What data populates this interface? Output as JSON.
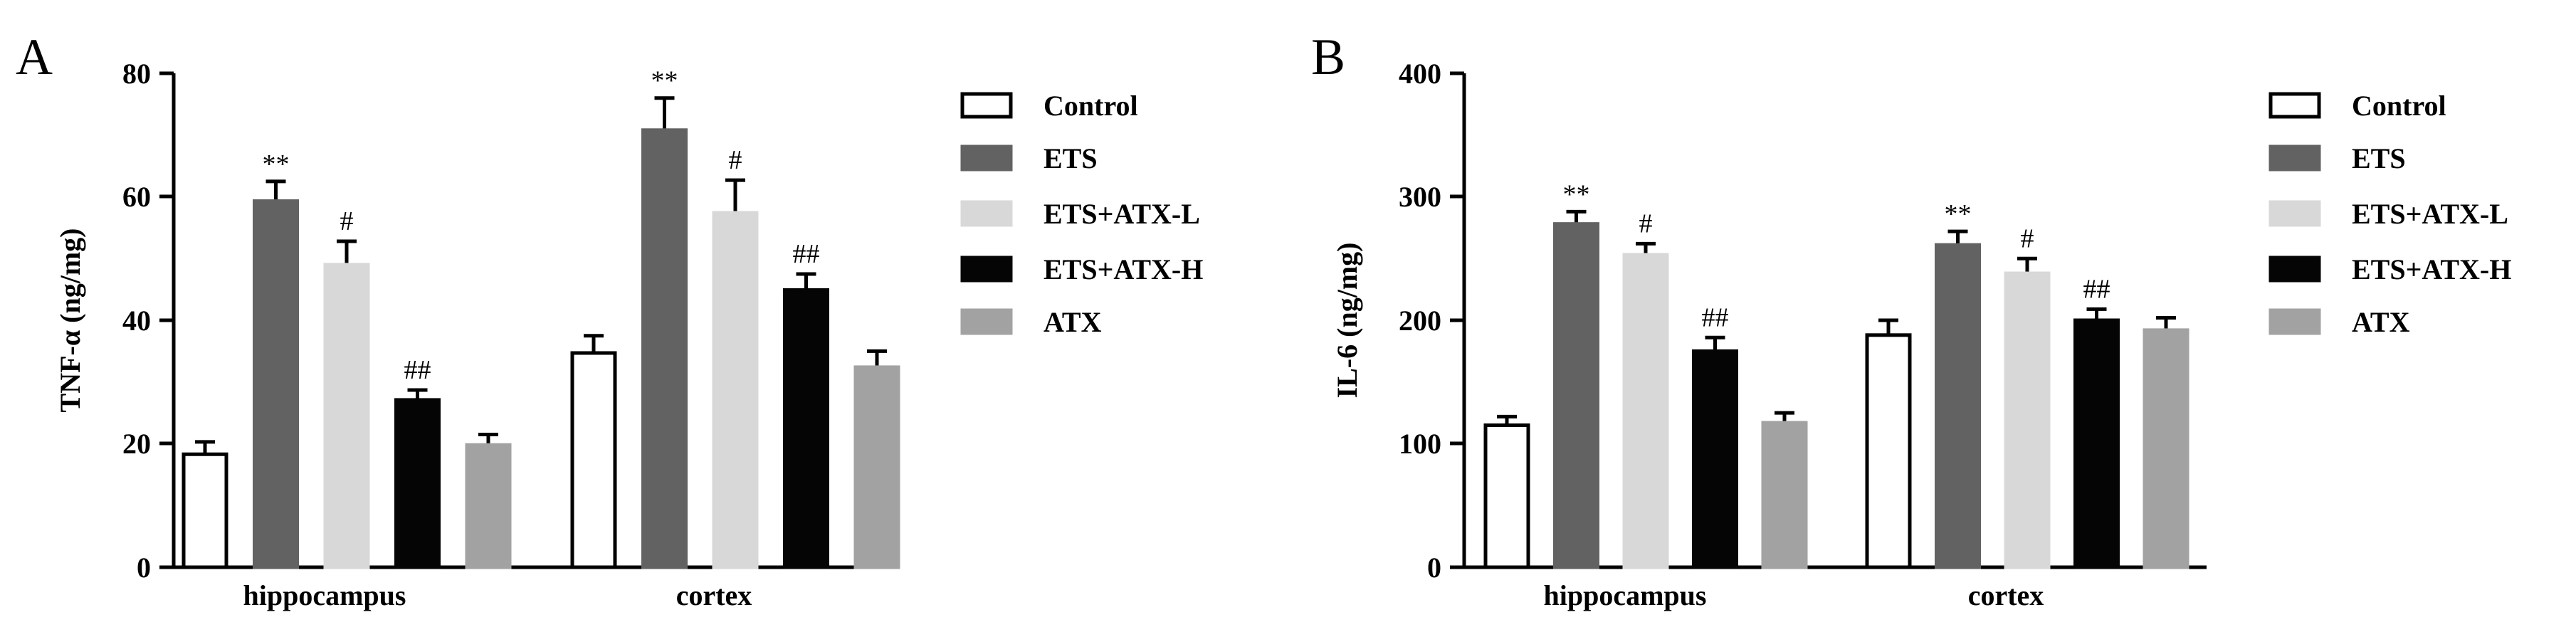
{
  "panels": [
    {
      "letter": "A",
      "ylabel": "TNF-α (ng/mg)",
      "ylim": [
        0,
        80
      ],
      "yticks": [
        0,
        20,
        40,
        60,
        80
      ],
      "categories": [
        "hippocampus",
        "cortex"
      ],
      "legend": [
        "Control",
        "ETS",
        "ETS+ATX-L",
        "ETS+ATX-H",
        "ATX"
      ]
    },
    {
      "letter": "B",
      "ylabel": "IL-6 (ng/mg)",
      "ylim": [
        0,
        400
      ],
      "yticks": [
        0,
        100,
        200,
        300,
        400
      ],
      "categories": [
        "hippocampus",
        "cortex"
      ],
      "legend": [
        "Control",
        "ETS",
        "ETS+ATX-L",
        "ETS+ATX-H",
        "ATX"
      ]
    }
  ],
  "chart_data": [
    {
      "type": "bar",
      "title": "",
      "xlabel": "",
      "ylabel": "TNF-α (ng/mg)",
      "ylim": [
        0,
        80
      ],
      "categories": [
        "hippocampus",
        "cortex"
      ],
      "legend_position": "right",
      "grid": false,
      "series": [
        {
          "name": "Control",
          "color": "#ffffff",
          "values": [
            18.3,
            34.7
          ],
          "errors": [
            2.0,
            2.8
          ],
          "significance": [
            "",
            ""
          ]
        },
        {
          "name": "ETS",
          "color": "#626262",
          "values": [
            59.3,
            70.8
          ],
          "errors": [
            3.2,
            5.2
          ],
          "significance": [
            "**",
            "**"
          ]
        },
        {
          "name": "ETS+ATX-L",
          "color": "#d8d8d8",
          "values": [
            49.0,
            57.4
          ],
          "errors": [
            3.8,
            5.3
          ],
          "significance": [
            "#",
            "#"
          ]
        },
        {
          "name": "ETS+ATX-H",
          "color": "#050505",
          "values": [
            27.1,
            44.9
          ],
          "errors": [
            1.6,
            2.6
          ],
          "significance": [
            "##",
            "##"
          ]
        },
        {
          "name": "ATX",
          "color": "#a2a2a2",
          "values": [
            19.8,
            32.4
          ],
          "errors": [
            1.7,
            2.6
          ],
          "significance": [
            "",
            ""
          ]
        }
      ]
    },
    {
      "type": "bar",
      "title": "",
      "xlabel": "",
      "ylabel": "IL-6 (ng/mg)",
      "ylim": [
        0,
        400
      ],
      "categories": [
        "hippocampus",
        "cortex"
      ],
      "legend_position": "right",
      "grid": false,
      "series": [
        {
          "name": "Control",
          "color": "#ffffff",
          "values": [
            115,
            188
          ],
          "errors": [
            7,
            12
          ],
          "significance": [
            "",
            ""
          ]
        },
        {
          "name": "ETS",
          "color": "#626262",
          "values": [
            278,
            261
          ],
          "errors": [
            10,
            11
          ],
          "significance": [
            "**",
            "**"
          ]
        },
        {
          "name": "ETS+ATX-L",
          "color": "#d8d8d8",
          "values": [
            253,
            238
          ],
          "errors": [
            9,
            12
          ],
          "significance": [
            "#",
            "#"
          ]
        },
        {
          "name": "ETS+ATX-H",
          "color": "#050505",
          "values": [
            175,
            200
          ],
          "errors": [
            11,
            9
          ],
          "significance": [
            "##",
            "##"
          ]
        },
        {
          "name": "ATX",
          "color": "#a2a2a2",
          "values": [
            117,
            192
          ],
          "errors": [
            8,
            10
          ],
          "significance": [
            "",
            ""
          ]
        }
      ]
    }
  ]
}
